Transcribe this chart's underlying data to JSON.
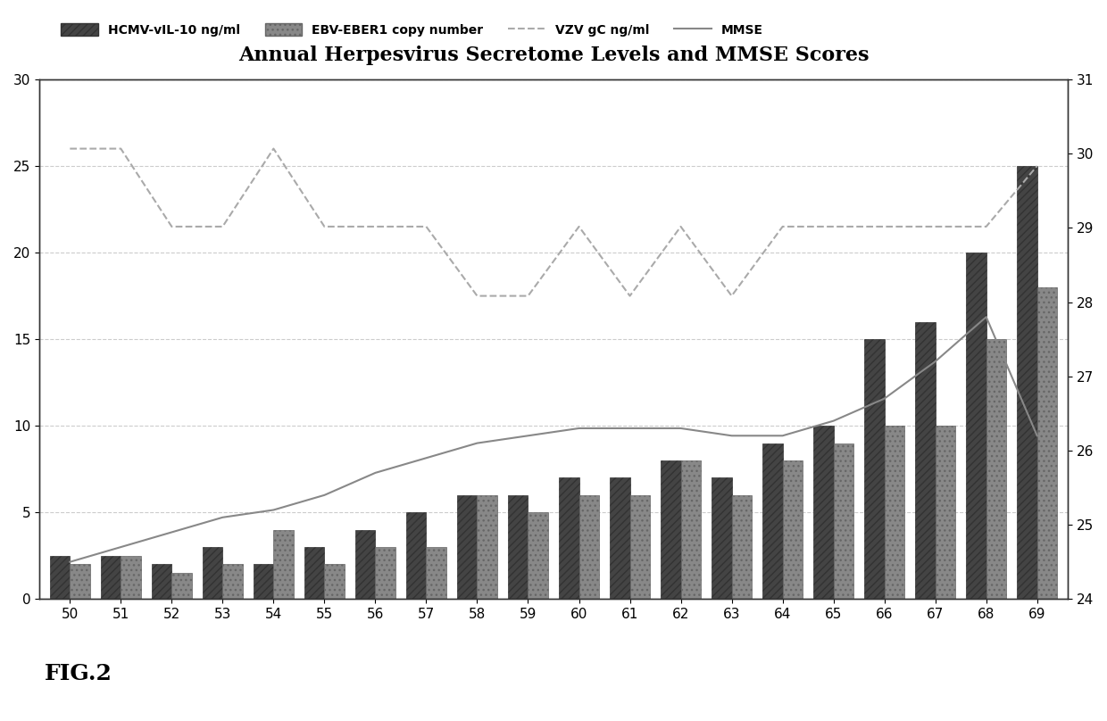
{
  "title": "Annual Herpesvirus Secretome Levels and MMSE Scores",
  "x_labels": [
    50,
    51,
    52,
    53,
    54,
    55,
    56,
    57,
    58,
    59,
    60,
    61,
    62,
    63,
    64,
    65,
    66,
    67,
    68,
    69
  ],
  "hcmv": [
    2.5,
    2.5,
    2.0,
    3.0,
    2.0,
    3.0,
    4.0,
    5.0,
    6.0,
    6.0,
    7.0,
    7.0,
    8.0,
    7.0,
    9.0,
    10.0,
    15.0,
    16.0,
    20.0,
    25.0
  ],
  "ebv": [
    2.0,
    2.5,
    1.5,
    2.0,
    4.0,
    2.0,
    3.0,
    3.0,
    6.0,
    5.0,
    6.0,
    6.0,
    8.0,
    6.0,
    8.0,
    9.0,
    10.0,
    10.0,
    15.0,
    18.0
  ],
  "vzv": [
    26.0,
    26.0,
    21.5,
    21.5,
    26.0,
    21.5,
    21.5,
    21.5,
    17.5,
    17.5,
    21.5,
    17.5,
    21.5,
    17.5,
    21.5,
    21.5,
    21.5,
    21.5,
    21.5,
    25.0
  ],
  "mmse": [
    24.5,
    24.7,
    24.9,
    25.1,
    25.2,
    25.4,
    25.7,
    25.9,
    26.1,
    26.2,
    26.3,
    26.3,
    26.3,
    26.2,
    26.2,
    26.4,
    26.7,
    27.2,
    27.8,
    26.2
  ],
  "hcmv_color": "#555555",
  "ebv_color": "#999999",
  "vzv_color": "#aaaaaa",
  "mmse_color": "#aaaaaa",
  "ylim_left": [
    0,
    30
  ],
  "ylim_right": [
    24,
    31
  ],
  "yticks_left": [
    0,
    5,
    10,
    15,
    20,
    25,
    30
  ],
  "yticks_right": [
    24,
    25,
    26,
    27,
    28,
    29,
    30,
    31
  ],
  "bg_color": "#ffffff",
  "fig_label": "FIG.2"
}
